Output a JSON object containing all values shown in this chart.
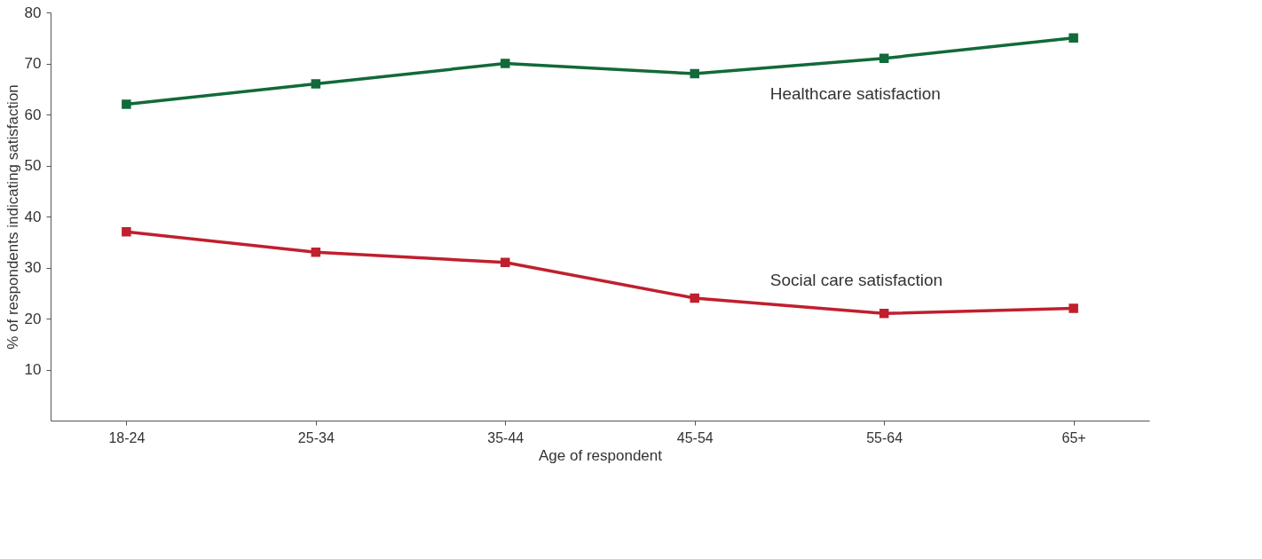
{
  "chart_data": {
    "type": "line",
    "xlabel": "Age of respondent",
    "ylabel": "% of respondents indicating satisfaction",
    "categories": [
      "18-24",
      "25-34",
      "35-44",
      "45-54",
      "55-64",
      "65+"
    ],
    "series": [
      {
        "name": "Healthcare satisfaction",
        "color": "#116a39",
        "values": [
          62,
          66,
          70,
          68,
          71,
          75
        ]
      },
      {
        "name": "Social care satisfaction",
        "color": "#c01f2e",
        "values": [
          37,
          33,
          31,
          24,
          21,
          22
        ]
      }
    ],
    "ylim": [
      0,
      80
    ],
    "yticks": [
      10,
      20,
      30,
      40,
      50,
      60,
      70,
      80
    ],
    "grid": false,
    "marker": "square",
    "line_style": "solid"
  }
}
